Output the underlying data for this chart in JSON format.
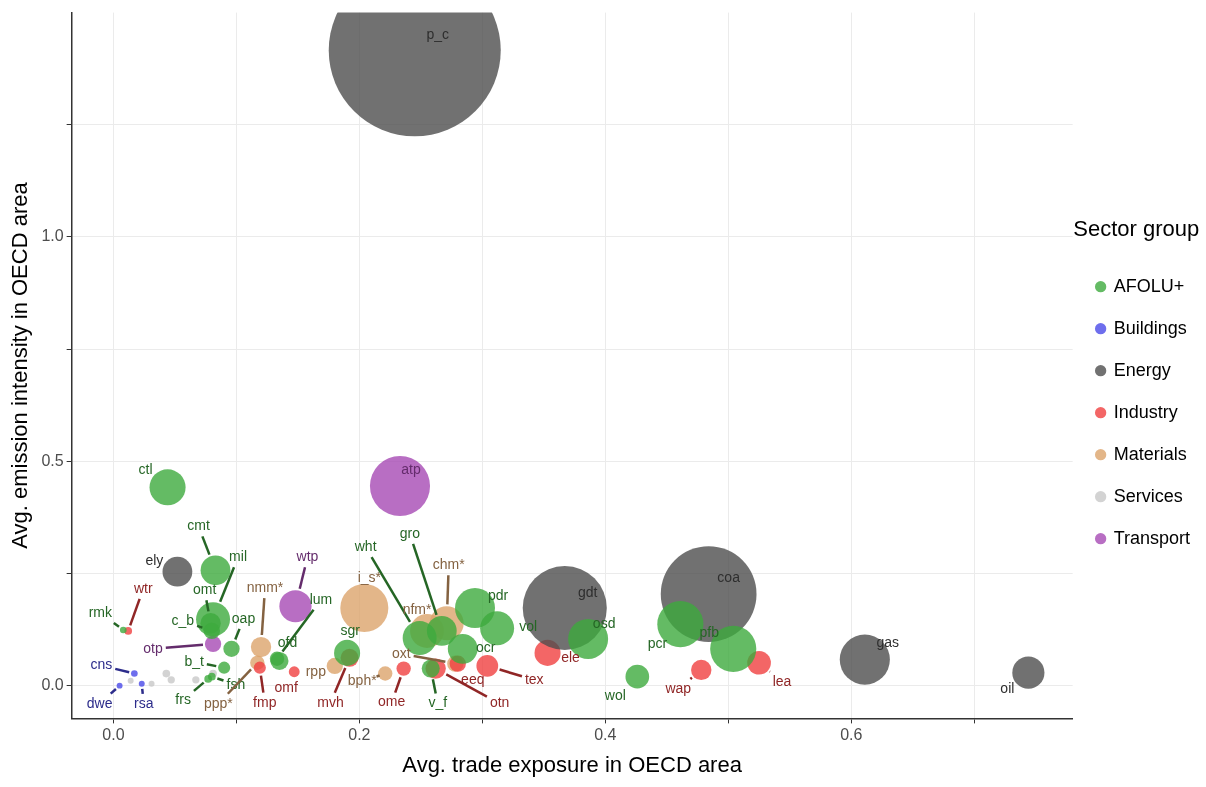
{
  "chart_data": {
    "type": "bubble",
    "xlabel": "Avg. trade exposure in OECD area",
    "ylabel": "Avg. emission intensity in OECD area",
    "legend_title": "Sector group",
    "legend": "right",
    "grid": true,
    "xlim": [
      -0.034,
      0.78
    ],
    "ylim": [
      -0.073,
      1.5
    ],
    "xticks": [
      {
        "value": 0,
        "label": "0.0"
      },
      {
        "value": 0.1,
        "label": null
      },
      {
        "value": 0.2,
        "label": "0.2"
      },
      {
        "value": 0.3,
        "label": null
      },
      {
        "value": 0.4,
        "label": "0.4"
      },
      {
        "value": 0.5,
        "label": null
      },
      {
        "value": 0.6,
        "label": "0.6"
      },
      {
        "value": 0.7,
        "label": null
      }
    ],
    "yticks": [
      {
        "value": 0,
        "label": "0.0"
      },
      {
        "value": 0.25,
        "label": null
      },
      {
        "value": 0.5,
        "label": "0.5"
      },
      {
        "value": 0.75,
        "label": null
      },
      {
        "value": 1,
        "label": "1.0"
      },
      {
        "value": 1.25,
        "label": null
      }
    ],
    "series": [
      {
        "name": "AFOLU+",
        "color": "#3daa3d",
        "x": [
          0.044,
          0.083,
          0.081,
          0.079,
          0.08,
          0.096,
          0.09,
          0.08,
          0.077,
          0.008,
          0.135,
          0.133,
          0.19,
          0.249,
          0.267,
          0.294,
          0.284,
          0.312,
          0.258,
          0.386,
          0.461,
          0.504,
          0.426
        ],
        "values": [
          0.442,
          0.257,
          0.148,
          0.139,
          0.122,
          0.082,
          0.04,
          0.02,
          0.015,
          0.124,
          0.055,
          0.06,
          0.073,
          0.106,
          0.122,
          0.173,
          0.082,
          0.128,
          0.038,
          0.104,
          0.137,
          0.082,
          0.02
        ],
        "sizes": [
          0.044,
          0.03,
          0.039,
          0.014,
          0.009,
          0.009,
          0.005,
          0.002,
          0.002,
          0.0015,
          0.011,
          0.007,
          0.023,
          0.039,
          0.03,
          0.054,
          0.03,
          0.039,
          0.011,
          0.054,
          0.072,
          0.072,
          0.019
        ],
        "value_labels": [
          "ctl",
          "cmt",
          "mil",
          "omt",
          "c_b",
          "oap",
          "b_t",
          "fsh",
          "frs",
          "rmk",
          "ofd",
          "lum",
          "sgr",
          "wht",
          "gro",
          "pdr",
          "ocr",
          "vol",
          "v_f",
          "osd",
          "pcr",
          "pfb",
          "wol"
        ]
      },
      {
        "name": "Buildings",
        "color": "#4a4ae8",
        "x": [
          0.017,
          0.005,
          0.023
        ],
        "values": [
          0.027,
          0.0,
          0.004
        ],
        "sizes": [
          0.0015,
          0.0012,
          0.0012
        ],
        "value_labels": [
          "cns",
          "dwe",
          "rsa"
        ]
      },
      {
        "name": "Energy",
        "color": "#4d4d4d",
        "x": [
          0.245,
          0.367,
          0.484,
          0.611,
          0.744,
          0.052
        ],
        "values": [
          1.416,
          0.173,
          0.204,
          0.058,
          0.029,
          0.254
        ],
        "sizes": [
          1,
          0.239,
          0.31,
          0.085,
          0.035,
          0.03
        ],
        "value_labels": [
          "p_c",
          "gdt",
          "coa",
          "gas",
          "oil",
          "ely"
        ]
      },
      {
        "name": "Industry",
        "color": "#f04040",
        "x": [
          0.012,
          0.147,
          0.119,
          0.192,
          0.236,
          0.262,
          0.28,
          0.304,
          0.353,
          0.478,
          0.525
        ],
        "values": [
          0.122,
          0.031,
          0.04,
          0.062,
          0.038,
          0.038,
          0.049,
          0.044,
          0.073,
          0.035,
          0.051
        ],
        "sizes": [
          0.002,
          0.004,
          0.005,
          0.011,
          0.007,
          0.014,
          0.009,
          0.016,
          0.023,
          0.014,
          0.019
        ],
        "value_labels": [
          "wtr",
          "omf",
          "fmp",
          "mvh",
          "ome",
          "otn",
          "eeq",
          "tex",
          "ele",
          "wap",
          "lea"
        ]
      },
      {
        "name": "Materials",
        "color": "#dca46c",
        "x": [
          0.12,
          0.117,
          0.18,
          0.204,
          0.221,
          0.278,
          0.255,
          0.271
        ],
        "values": [
          0.086,
          0.051,
          0.044,
          0.173,
          0.027,
          0.049,
          0.122,
          0.139
        ],
        "sizes": [
          0.014,
          0.007,
          0.009,
          0.078,
          0.007,
          0.009,
          0.039,
          0.039
        ],
        "value_labels": [
          "nmm*",
          "ppp*",
          "rpp",
          "i_s*",
          "bph*",
          "oxt",
          "nfm*",
          "chm*"
        ]
      },
      {
        "name": "Services",
        "color": "#c8c8c8",
        "x": [
          0.014,
          0.043,
          0.047,
          0.067,
          0.081,
          0.031
        ],
        "values": [
          0.011,
          0.027,
          0.013,
          0.013,
          0.027,
          0.004
        ],
        "sizes": [
          0.0012,
          0.002,
          0.0018,
          0.0018,
          0.002,
          0.0012
        ],
        "value_labels": [
          null,
          null,
          null,
          null,
          null,
          null
        ]
      },
      {
        "name": "Transport",
        "color": "#a64ab4",
        "x": [
          0.233,
          0.148,
          0.081
        ],
        "values": [
          0.445,
          0.177,
          0.093
        ],
        "sizes": [
          0.122,
          0.035,
          0.009
        ],
        "value_labels": [
          "atp",
          "wtp",
          "otp"
        ]
      }
    ]
  }
}
